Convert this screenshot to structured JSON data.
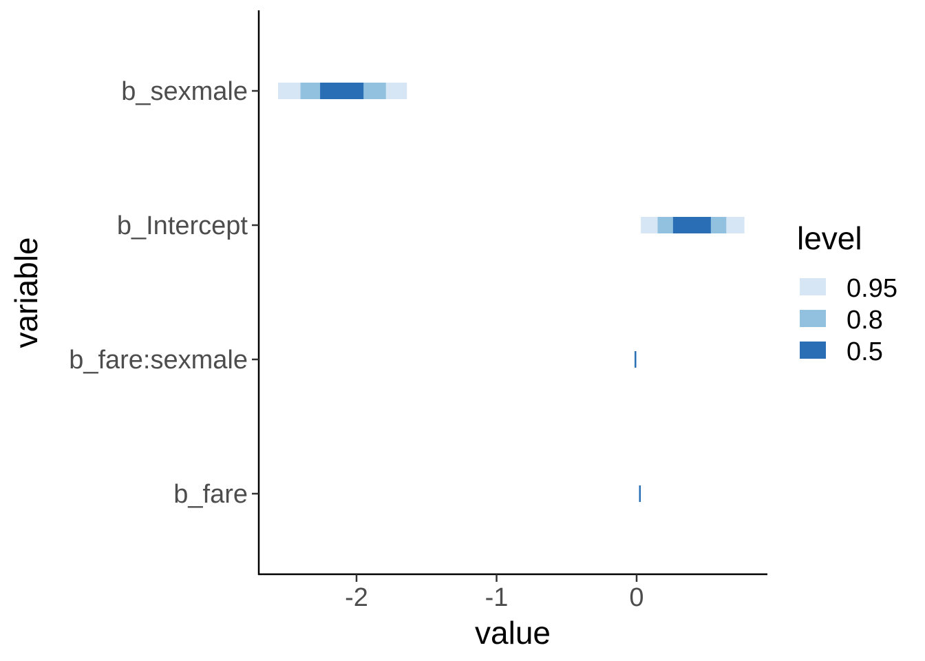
{
  "chart_data": {
    "type": "interval",
    "xlabel": "value",
    "ylabel": "variable",
    "xlim": [
      -2.72,
      0.92
    ],
    "x_ticks": [
      -2,
      -1,
      0
    ],
    "x_tick_labels": [
      "-2",
      "-1",
      "0"
    ],
    "categories": [
      "b_sexmale",
      "b_Intercept",
      "b_fare:sexmale",
      "b_fare"
    ],
    "grid": false,
    "legend": {
      "title": "level",
      "placement": "right",
      "items": [
        {
          "label": "0.95",
          "color": "#d6e6f4"
        },
        {
          "label": "0.8",
          "color": "#92c0df"
        },
        {
          "label": "0.5",
          "color": "#2a6fb6"
        }
      ]
    },
    "series": [
      {
        "name": "0.95",
        "intervals": [
          [
            -2.56,
            -1.64
          ],
          [
            0.03,
            0.77
          ],
          [
            -0.012,
            -0.005
          ],
          [
            0.02,
            0.027
          ]
        ]
      },
      {
        "name": "0.8",
        "intervals": [
          [
            -2.4,
            -1.79
          ],
          [
            0.15,
            0.64
          ],
          [
            -0.011,
            -0.006
          ],
          [
            0.021,
            0.026
          ]
        ]
      },
      {
        "name": "0.5",
        "intervals": [
          [
            -2.26,
            -1.95
          ],
          [
            0.26,
            0.53
          ],
          [
            -0.01,
            -0.007
          ],
          [
            0.022,
            0.025
          ]
        ]
      }
    ]
  }
}
